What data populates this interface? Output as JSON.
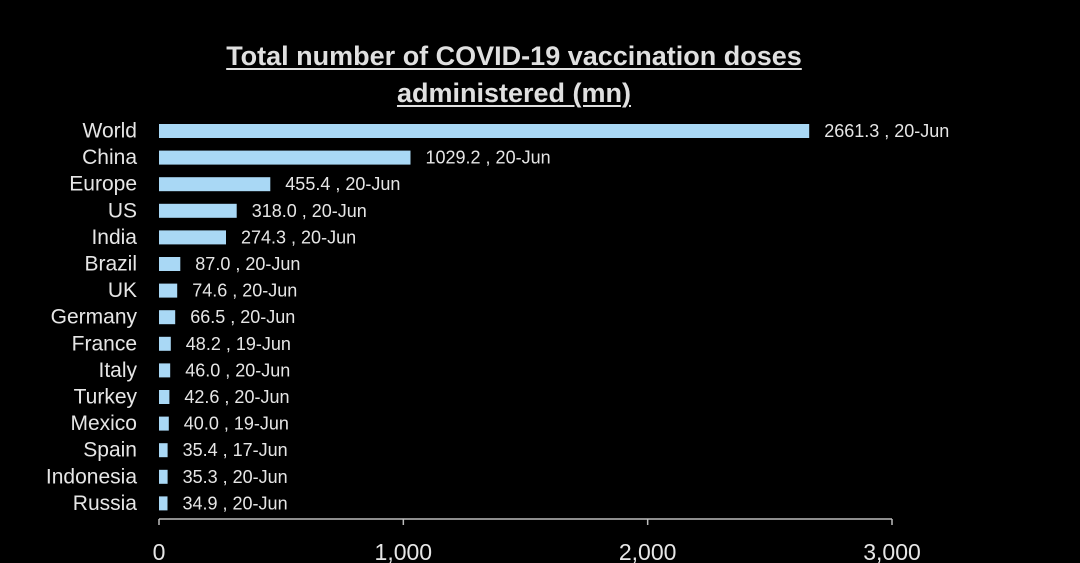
{
  "chart_data": {
    "type": "bar",
    "orientation": "horizontal",
    "title_lines": [
      "Total number of COVID-19 vaccination doses",
      "administered (mn)"
    ],
    "categories": [
      "World",
      "China",
      "Europe",
      "US",
      "India",
      "Brazil",
      "UK",
      "Germany",
      "France",
      "Italy",
      "Turkey",
      "Mexico",
      "Spain",
      "Indonesia",
      "Russia"
    ],
    "values": [
      2661.3,
      1029.2,
      455.4,
      318.0,
      274.3,
      87.0,
      74.6,
      66.5,
      48.2,
      46.0,
      42.6,
      40.0,
      35.4,
      35.3,
      34.9
    ],
    "data_labels": [
      "2661.3 , 20-Jun",
      "1029.2 , 20-Jun",
      "455.4 , 20-Jun",
      "318.0 , 20-Jun",
      "274.3 , 20-Jun",
      "87.0 , 20-Jun",
      "74.6 , 20-Jun",
      "66.5 , 20-Jun",
      "48.2 , 19-Jun",
      "46.0 , 20-Jun",
      "42.6 , 20-Jun",
      "40.0 , 19-Jun",
      "35.4 , 17-Jun",
      "35.3 , 20-Jun",
      "34.9 , 20-Jun"
    ],
    "x_ticks": [
      "0",
      "1,000",
      "2,000",
      "3,000"
    ],
    "x_tick_values": [
      0,
      1000,
      2000,
      3000
    ],
    "xlim": [
      0,
      3000
    ],
    "xlabel": "",
    "ylabel": "",
    "grid": false,
    "legend": "none",
    "colors": {
      "bar": "#a9d8f5",
      "background": "#000000",
      "text": "#e6e6e6",
      "axis": "#bdbdbd"
    }
  }
}
